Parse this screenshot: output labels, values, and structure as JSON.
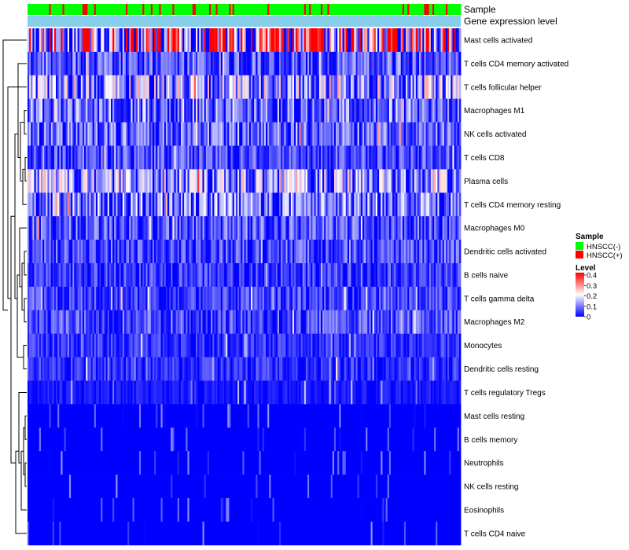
{
  "chart_data": {
    "type": "heatmap",
    "annotation_labels": [
      "Sample",
      "Gene expression level"
    ],
    "rows": [
      "Mast cells activated",
      "T cells CD4 memory activated",
      "T cells follicular helper",
      "Macrophages M1",
      "NK cells activated",
      "T cells CD8",
      "Plasma cells",
      "T cells CD4 memory resting",
      "Macrophages M0",
      "Dendritic cells activated",
      "B cells naive",
      "T cells gamma delta",
      "Macrophages M2",
      "Monocytes",
      "Dendritic cells resting",
      "T cells regulatory  Tregs",
      "Mast cells resting",
      "B cells memory",
      "Neutrophils",
      "NK cells resting",
      "Eosinophils",
      "T cells CD4 naive"
    ],
    "row_mean_levels": [
      0.28,
      0.07,
      0.13,
      0.09,
      0.08,
      0.06,
      0.12,
      0.1,
      0.07,
      0.06,
      0.05,
      0.05,
      0.06,
      0.04,
      0.04,
      0.02,
      0.01,
      0.01,
      0.01,
      0.01,
      0.0,
      0.01
    ],
    "legend": {
      "sample_title": "Sample",
      "sample_entries": [
        {
          "label": "HNSCC(-)",
          "color": "#00ff00"
        },
        {
          "label": "HNSCC(+)",
          "color": "#ff0000"
        }
      ],
      "level_title": "Level",
      "level_ticks": [
        "0.4",
        "0.3",
        "0.2",
        "0.1",
        "0"
      ],
      "level_range": [
        0,
        0.4
      ]
    },
    "colors": {
      "low": "#0000ff",
      "mid": "#ffffff",
      "high": "#ff0000",
      "annotation_bar": "#87ceeb"
    }
  }
}
